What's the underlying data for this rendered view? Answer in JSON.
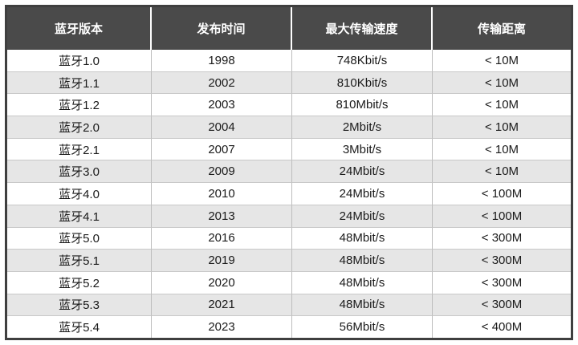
{
  "table": {
    "headers": [
      "蓝牙版本",
      "发布时间",
      "最大传输速度",
      "传输距离"
    ],
    "rows": [
      [
        "蓝牙1.0",
        "1998",
        "748Kbit/s",
        "< 10M"
      ],
      [
        "蓝牙1.1",
        "2002",
        "810Kbit/s",
        "< 10M"
      ],
      [
        "蓝牙1.2",
        "2003",
        "810Mbit/s",
        "< 10M"
      ],
      [
        "蓝牙2.0",
        "2004",
        "2Mbit/s",
        "< 10M"
      ],
      [
        "蓝牙2.1",
        "2007",
        "3Mbit/s",
        "< 10M"
      ],
      [
        "蓝牙3.0",
        "2009",
        "24Mbit/s",
        "< 10M"
      ],
      [
        "蓝牙4.0",
        "2010",
        "24Mbit/s",
        "< 100M"
      ],
      [
        "蓝牙4.1",
        "2013",
        "24Mbit/s",
        "< 100M"
      ],
      [
        "蓝牙5.0",
        "2016",
        "48Mbit/s",
        "< 300M"
      ],
      [
        "蓝牙5.1",
        "2019",
        "48Mbit/s",
        "< 300M"
      ],
      [
        "蓝牙5.2",
        "2020",
        "48Mbit/s",
        "< 300M"
      ],
      [
        "蓝牙5.3",
        "2021",
        "48Mbit/s",
        "< 300M"
      ],
      [
        "蓝牙5.4",
        "2023",
        "56Mbit/s",
        "< 400M"
      ]
    ]
  },
  "colors": {
    "header_bg": "#4a4a4a",
    "header_text": "#ffffff",
    "row_even_bg": "#e6e6e6",
    "row_odd_bg": "#ffffff",
    "frame": "#3f3f3f"
  }
}
